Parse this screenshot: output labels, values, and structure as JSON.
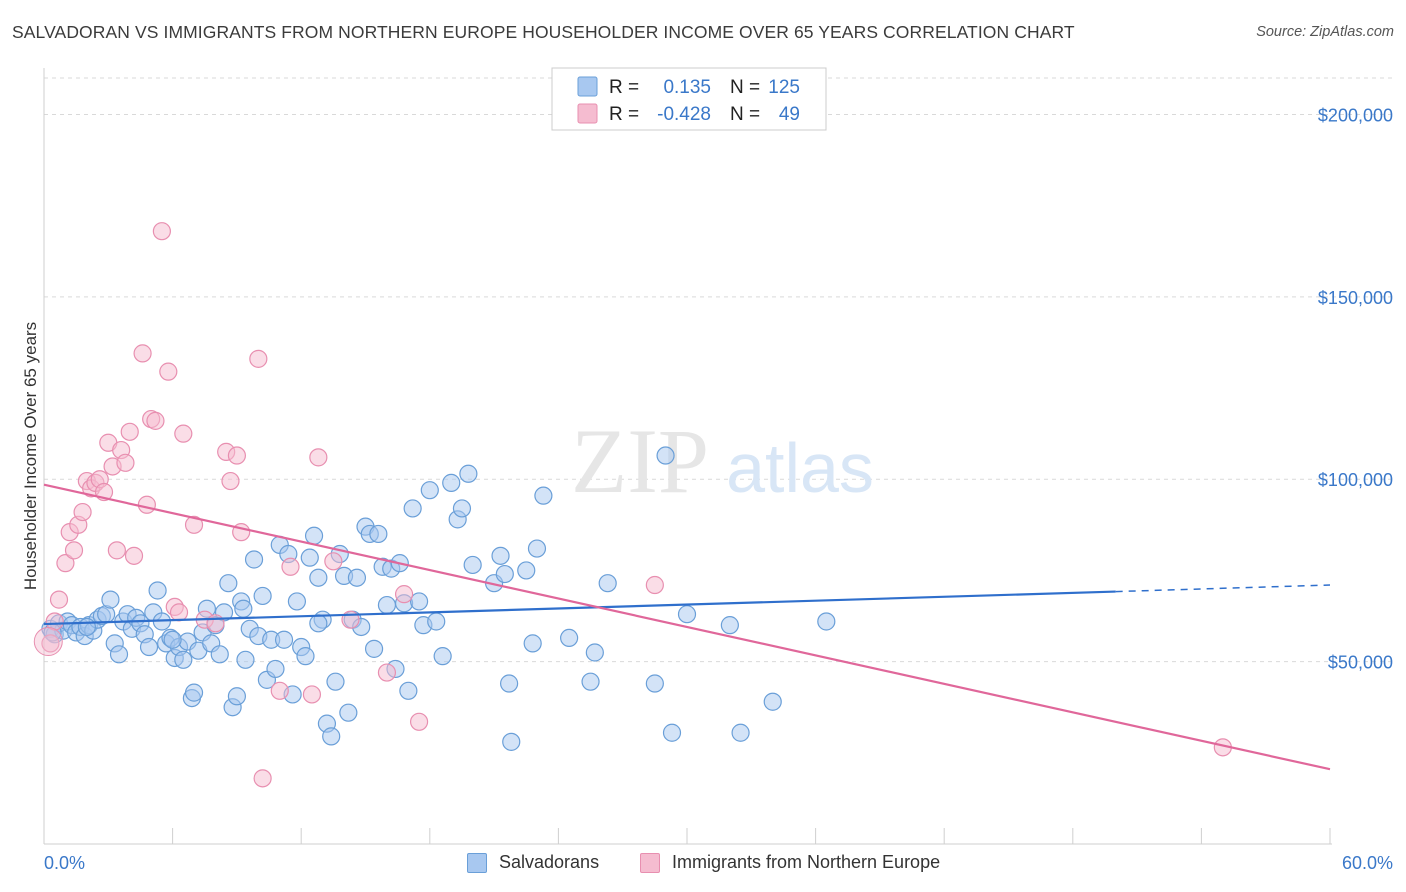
{
  "header": {
    "title": "SALVADORAN VS IMMIGRANTS FROM NORTHERN EUROPE HOUSEHOLDER INCOME OVER 65 YEARS CORRELATION CHART",
    "source": "Source: ZipAtlas.com"
  },
  "watermark": {
    "zip": "ZIP",
    "atlas": "atlas"
  },
  "legend_box": {
    "rows": [
      {
        "r_label": "R =",
        "r_value": "0.135",
        "n_label": "N =",
        "n_value": "125"
      },
      {
        "r_label": "R =",
        "r_value": "-0.428",
        "n_label": "N =",
        "n_value": "49"
      }
    ]
  },
  "bottom_legend": {
    "salvadorans": "Salvadorans",
    "immigrants": "Immigrants from Northern Europe"
  },
  "colors": {
    "blue_fill": "#a8c8f0",
    "blue_stroke": "#6a9fd8",
    "blue_line": "#2f6fcc",
    "pink_fill": "#f5bcd0",
    "pink_stroke": "#e88fb0",
    "pink_line": "#e0679a",
    "tick_text": "#3a78c9",
    "grid": "#d9d9d9"
  },
  "chart_data": {
    "type": "scatter",
    "title": "SALVADORAN VS IMMIGRANTS FROM NORTHERN EUROPE HOUSEHOLDER INCOME OVER 65 YEARS CORRELATION CHART",
    "xlabel": "",
    "ylabel": "Householder Income Over 65 years",
    "xlim": [
      0,
      60
    ],
    "ylim": [
      0,
      210000
    ],
    "x_tick_labels": [
      "0.0%",
      "60.0%"
    ],
    "y_ticks": [
      50000,
      100000,
      150000,
      200000
    ],
    "y_tick_labels": [
      "$50,000",
      "$100,000",
      "$150,000",
      "$200,000"
    ],
    "grid": true,
    "legend_position": "top-center",
    "series": [
      {
        "name": "Salvadorans",
        "color": "#6a9fd8",
        "r": 0.135,
        "n": 125,
        "trend": {
          "x": [
            0,
            50
          ],
          "y": [
            60300,
            69200
          ],
          "dashed_to_x": 60,
          "dashed_to_y": 71000
        },
        "points": [
          [
            0.3,
            59000
          ],
          [
            0.5,
            57500
          ],
          [
            0.7,
            60500
          ],
          [
            0.9,
            58500
          ],
          [
            1.1,
            61000
          ],
          [
            1.3,
            60000
          ],
          [
            1.5,
            58000
          ],
          [
            1.7,
            59500
          ],
          [
            1.9,
            57000
          ],
          [
            2.1,
            60000
          ],
          [
            2.3,
            58500
          ],
          [
            2.5,
            61500
          ],
          [
            2.7,
            62500
          ],
          [
            2.9,
            63000
          ],
          [
            3.1,
            67000
          ],
          [
            3.3,
            55000
          ],
          [
            3.5,
            52000
          ],
          [
            3.7,
            61000
          ],
          [
            3.9,
            63000
          ],
          [
            4.1,
            59000
          ],
          [
            4.3,
            62000
          ],
          [
            4.5,
            60500
          ],
          [
            4.7,
            57500
          ],
          [
            4.9,
            54000
          ],
          [
            5.1,
            63500
          ],
          [
            5.3,
            69500
          ],
          [
            5.5,
            61000
          ],
          [
            5.7,
            55000
          ],
          [
            5.9,
            56500
          ],
          [
            6.1,
            51000
          ],
          [
            6.3,
            54000
          ],
          [
            6.5,
            50500
          ],
          [
            6.7,
            55500
          ],
          [
            6.9,
            40000
          ],
          [
            7.0,
            41500
          ],
          [
            7.2,
            53000
          ],
          [
            7.4,
            58000
          ],
          [
            7.6,
            64500
          ],
          [
            7.8,
            55000
          ],
          [
            8.0,
            60000
          ],
          [
            8.2,
            52000
          ],
          [
            8.4,
            63500
          ],
          [
            8.6,
            71500
          ],
          [
            8.8,
            37500
          ],
          [
            9.0,
            40500
          ],
          [
            9.2,
            66500
          ],
          [
            9.4,
            50500
          ],
          [
            9.6,
            59000
          ],
          [
            9.8,
            78000
          ],
          [
            10.0,
            57000
          ],
          [
            10.2,
            68000
          ],
          [
            10.4,
            45000
          ],
          [
            10.6,
            56000
          ],
          [
            10.8,
            48000
          ],
          [
            11.0,
            82000
          ],
          [
            11.2,
            56000
          ],
          [
            11.4,
            79500
          ],
          [
            11.6,
            41000
          ],
          [
            11.8,
            66500
          ],
          [
            12.0,
            54000
          ],
          [
            12.2,
            51500
          ],
          [
            12.4,
            78500
          ],
          [
            12.6,
            84500
          ],
          [
            12.8,
            73000
          ],
          [
            13.0,
            61500
          ],
          [
            13.2,
            33000
          ],
          [
            13.4,
            29500
          ],
          [
            13.6,
            44500
          ],
          [
            13.8,
            79500
          ],
          [
            14.0,
            73500
          ],
          [
            14.2,
            36000
          ],
          [
            14.4,
            61500
          ],
          [
            14.6,
            73000
          ],
          [
            14.8,
            59500
          ],
          [
            15.0,
            87000
          ],
          [
            15.2,
            85000
          ],
          [
            15.4,
            53500
          ],
          [
            15.6,
            85000
          ],
          [
            15.8,
            76000
          ],
          [
            16.0,
            65500
          ],
          [
            16.2,
            75500
          ],
          [
            16.4,
            48000
          ],
          [
            16.6,
            77000
          ],
          [
            16.8,
            66000
          ],
          [
            17.0,
            42000
          ],
          [
            17.2,
            92000
          ],
          [
            17.5,
            66500
          ],
          [
            17.7,
            60000
          ],
          [
            18.0,
            97000
          ],
          [
            18.3,
            61000
          ],
          [
            18.6,
            51500
          ],
          [
            19.0,
            99000
          ],
          [
            19.3,
            89000
          ],
          [
            19.5,
            92000
          ],
          [
            19.8,
            101500
          ],
          [
            20.0,
            76500
          ],
          [
            21.0,
            71500
          ],
          [
            21.3,
            79000
          ],
          [
            21.5,
            74000
          ],
          [
            21.7,
            44000
          ],
          [
            21.8,
            28000
          ],
          [
            22.5,
            75000
          ],
          [
            22.8,
            55000
          ],
          [
            23.0,
            81000
          ],
          [
            23.3,
            95500
          ],
          [
            24.5,
            56500
          ],
          [
            25.5,
            44500
          ],
          [
            25.7,
            52500
          ],
          [
            26.3,
            71500
          ],
          [
            28.5,
            44000
          ],
          [
            29.0,
            106500
          ],
          [
            29.3,
            30500
          ],
          [
            30.0,
            63000
          ],
          [
            32.0,
            60000
          ],
          [
            32.5,
            30500
          ],
          [
            34.0,
            39000
          ],
          [
            36.5,
            61000
          ],
          [
            0.4,
            58000
          ],
          [
            2.0,
            59500
          ],
          [
            6.0,
            56000
          ],
          [
            9.3,
            64500
          ],
          [
            12.8,
            60500
          ]
        ]
      },
      {
        "name": "Immigrants from Northern Europe",
        "color": "#e88fb0",
        "r": -0.428,
        "n": 49,
        "trend": {
          "x": [
            0,
            60
          ],
          "y": [
            98500,
            20500
          ]
        },
        "points": [
          [
            0.3,
            55000
          ],
          [
            0.5,
            61000
          ],
          [
            0.7,
            67000
          ],
          [
            1.0,
            77000
          ],
          [
            1.2,
            85500
          ],
          [
            1.4,
            80500
          ],
          [
            1.6,
            87500
          ],
          [
            1.8,
            91000
          ],
          [
            2.0,
            99500
          ],
          [
            2.2,
            97500
          ],
          [
            2.4,
            99000
          ],
          [
            2.6,
            100000
          ],
          [
            2.8,
            96500
          ],
          [
            3.0,
            110000
          ],
          [
            3.2,
            103500
          ],
          [
            3.4,
            80500
          ],
          [
            3.6,
            108000
          ],
          [
            3.8,
            104500
          ],
          [
            4.0,
            113000
          ],
          [
            4.2,
            79000
          ],
          [
            4.6,
            134500
          ],
          [
            4.8,
            93000
          ],
          [
            5.0,
            116500
          ],
          [
            5.2,
            116000
          ],
          [
            5.5,
            168000
          ],
          [
            5.8,
            129500
          ],
          [
            6.1,
            65000
          ],
          [
            6.3,
            63500
          ],
          [
            6.5,
            112500
          ],
          [
            7.0,
            87500
          ],
          [
            7.5,
            61500
          ],
          [
            8.0,
            60500
          ],
          [
            8.5,
            107500
          ],
          [
            8.7,
            99500
          ],
          [
            9.0,
            106500
          ],
          [
            9.2,
            85500
          ],
          [
            10.0,
            133000
          ],
          [
            10.2,
            18000
          ],
          [
            11.0,
            42000
          ],
          [
            11.5,
            76000
          ],
          [
            12.5,
            41000
          ],
          [
            12.8,
            106000
          ],
          [
            13.5,
            77500
          ],
          [
            14.3,
            61500
          ],
          [
            16.0,
            47000
          ],
          [
            16.8,
            68500
          ],
          [
            17.5,
            33500
          ],
          [
            28.5,
            71000
          ],
          [
            55.0,
            26500
          ]
        ]
      }
    ]
  }
}
